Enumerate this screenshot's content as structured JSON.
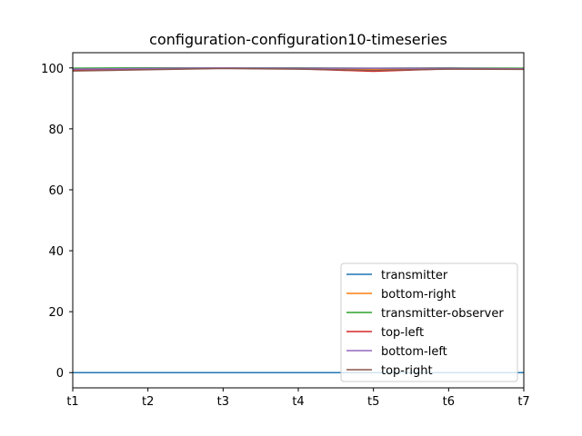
{
  "chart_data": {
    "type": "line",
    "title": "configuration-configuration10-timeseries",
    "xlabel": "",
    "ylabel": "",
    "categories": [
      "t1",
      "t2",
      "t3",
      "t4",
      "t5",
      "t6",
      "t7"
    ],
    "ylim": [
      -5,
      105
    ],
    "yticks": [
      0,
      20,
      40,
      60,
      80,
      100
    ],
    "grid": false,
    "legend_position": "lower-right",
    "series": [
      {
        "name": "transmitter",
        "color": "#1f77b4",
        "values": [
          0,
          0,
          0,
          0,
          0,
          0,
          0
        ]
      },
      {
        "name": "bottom-right",
        "color": "#ff7f0e",
        "values": [
          99.5,
          99.7,
          99.9,
          99.8,
          99.6,
          99.8,
          99.6
        ]
      },
      {
        "name": "transmitter-observer",
        "color": "#2ca02c",
        "values": [
          99.9,
          100,
          100,
          100,
          99.9,
          100,
          99.9
        ]
      },
      {
        "name": "top-left",
        "color": "#d62728",
        "values": [
          99.3,
          99.5,
          99.9,
          99.7,
          98.9,
          99.7,
          99.6
        ]
      },
      {
        "name": "bottom-left",
        "color": "#9467bd",
        "values": [
          99.6,
          99.8,
          100,
          99.9,
          99.9,
          99.9,
          99.7
        ]
      },
      {
        "name": "top-right",
        "color": "#8c564b",
        "values": [
          99.0,
          99.4,
          99.8,
          99.6,
          99.2,
          99.6,
          99.5
        ]
      }
    ]
  }
}
